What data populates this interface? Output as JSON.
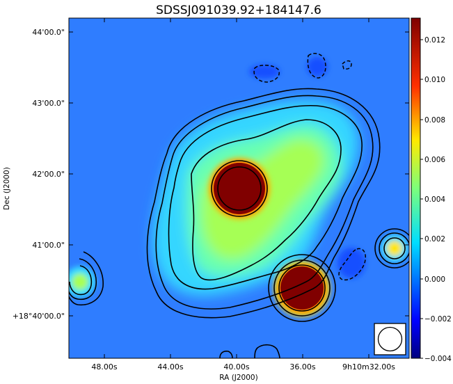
{
  "chart_data": {
    "type": "heatmap",
    "title": "SDSSJ091039.92+184147.6",
    "xlabel": "RA (J2000)",
    "ylabel": "Dec (J2000)",
    "x_tick_labels": [
      "48.00s",
      "44.00s",
      "40.00s",
      "36.00s",
      "9h10m32.00s"
    ],
    "y_tick_labels": [
      "44'00.0\"",
      "43'00.0\"",
      "42'00.0\"",
      "41'00.0\"",
      "+18°40'00.0\""
    ],
    "colorbar": {
      "colormap": "jet",
      "range": [
        -0.004,
        0.013
      ],
      "tick_labels": [
        "0.012",
        "0.010",
        "0.008",
        "0.006",
        "0.004",
        "0.002",
        "0.000",
        "−0.002",
        "−0.004"
      ],
      "ticks": [
        0.012,
        0.01,
        0.008,
        0.006,
        0.004,
        0.002,
        0.0,
        -0.002,
        -0.004
      ]
    },
    "contours": {
      "positive_style": "solid black",
      "negative_style": "dashed black"
    },
    "sources": [
      {
        "name": "central bright source",
        "peak": 0.013,
        "saturated": true
      },
      {
        "name": "south-east compact source",
        "peak": 0.013,
        "saturated": true
      },
      {
        "name": "east compact source",
        "peak": 0.005
      },
      {
        "name": "west compact source",
        "peak": 0.004
      }
    ],
    "beam_marker": "circle"
  }
}
